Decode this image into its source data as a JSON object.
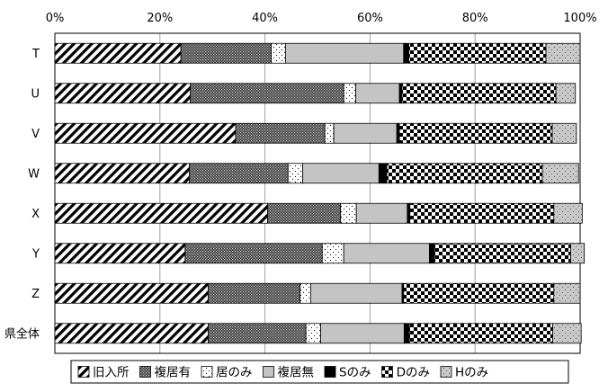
{
  "chart_data": {
    "type": "bar",
    "orientation": "horizontal",
    "stacked": true,
    "percent_stacked": true,
    "categories": [
      "T",
      "U",
      "V",
      "W",
      "X",
      "Y",
      "Z",
      "県全体"
    ],
    "xlim": [
      0,
      100
    ],
    "xticks": [
      "0%",
      "20%",
      "40%",
      "60%",
      "80%",
      "100%"
    ],
    "grid": true,
    "legend_position": "bottom",
    "series": [
      {
        "name": "旧入所",
        "pattern": "diagonal-stripes",
        "values": [
          24.0,
          25.8,
          34.4,
          25.6,
          40.5,
          24.8,
          29.2,
          29.2
        ]
      },
      {
        "name": "複居有",
        "pattern": "dense-dots",
        "values": [
          17.2,
          29.2,
          17.0,
          18.8,
          13.9,
          26.1,
          17.5,
          18.6
        ]
      },
      {
        "name": "居のみ",
        "pattern": "sparse-dots",
        "values": [
          2.7,
          2.3,
          1.7,
          2.8,
          3.0,
          4.1,
          2.0,
          2.8
        ]
      },
      {
        "name": "複居無",
        "pattern": "light-gray",
        "values": [
          22.5,
          8.3,
          12.0,
          14.5,
          9.7,
          16.3,
          17.4,
          15.9
        ]
      },
      {
        "name": "Sのみ",
        "pattern": "black",
        "values": [
          1.0,
          0.5,
          0.5,
          1.5,
          0.5,
          1.0,
          0.3,
          1.0
        ]
      },
      {
        "name": "Dのみ",
        "pattern": "checkerboard",
        "values": [
          26.1,
          29.3,
          29.1,
          29.6,
          27.4,
          25.9,
          28.6,
          27.3
        ]
      },
      {
        "name": "Hのみ",
        "pattern": "gray-dots",
        "values": [
          6.5,
          3.7,
          4.6,
          6.9,
          5.4,
          2.6,
          5.0,
          5.4
        ]
      }
    ]
  }
}
